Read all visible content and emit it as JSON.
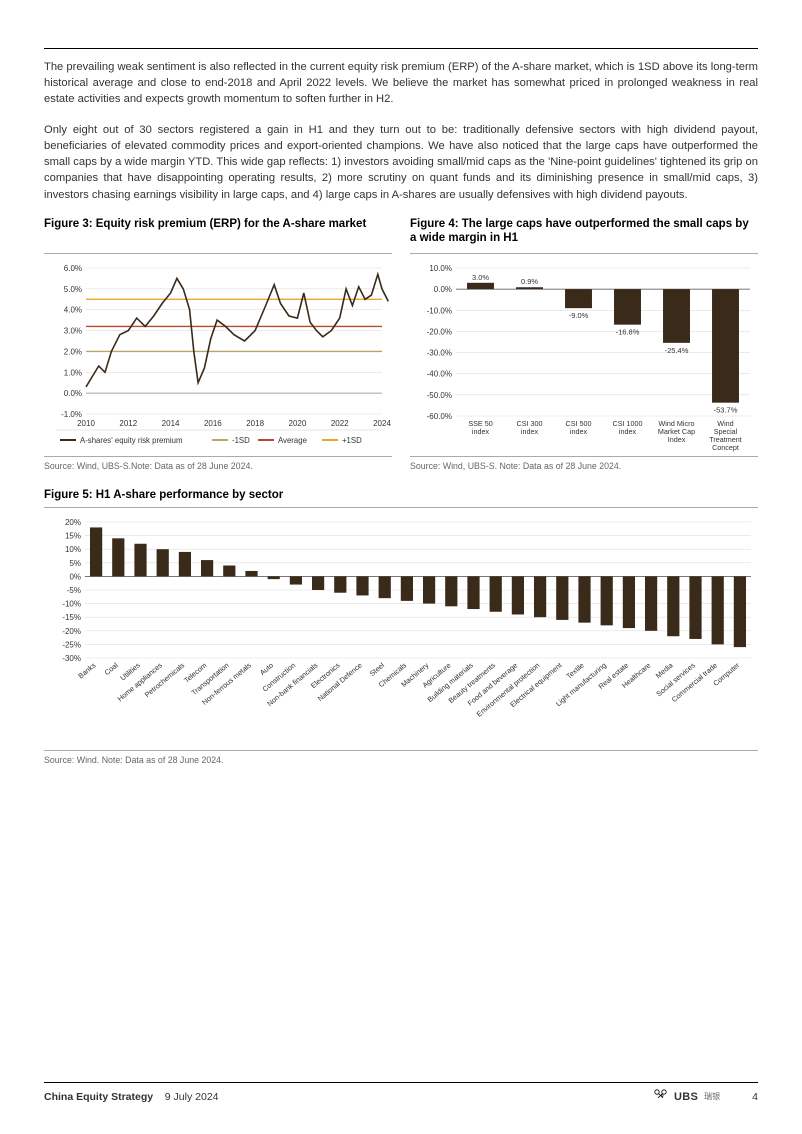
{
  "paragraphs": {
    "p1": "The prevailing weak sentiment is also reflected in the current equity risk premium (ERP) of the A-share market, which is 1SD above its long-term historical average and close to end-2018 and April 2022 levels. We believe the market has somewhat priced in prolonged weakness in real estate activities and expects growth momentum to soften further in H2.",
    "p2": "Only eight out of 30 sectors registered a gain in H1 and they turn out to be: traditionally defensive sectors with high dividend payout, beneficiaries of elevated commodity prices and export-oriented champions. We have also noticed that the large caps have outperformed the small caps by a wide margin YTD. This wide gap reflects: 1) investors avoiding small/mid caps as the 'Nine-point guidelines' tightened its grip on companies that have disappointing operating results, 2) more scrutiny on quant funds and its diminishing presence in small/mid caps, 3) investors chasing earnings visibility in large caps, and 4) large caps in A-shares are usually defensives with high dividend payouts."
  },
  "figure3": {
    "title": "Figure 3: Equity risk premium (ERP) for the A-share market",
    "type": "line",
    "ylim": [
      -1.0,
      6.0
    ],
    "ytick_step": 1.0,
    "ylabels": [
      "-1.0%",
      "0.0%",
      "1.0%",
      "2.0%",
      "3.0%",
      "4.0%",
      "5.0%",
      "6.0%"
    ],
    "xlim": [
      2010,
      2024
    ],
    "xtick_step": 2,
    "xlabels": [
      "2010",
      "2012",
      "2014",
      "2016",
      "2018",
      "2020",
      "2022",
      "2024"
    ],
    "colors": {
      "line": "#3a2a1a",
      "minus1sd": "#b5a66a",
      "average": "#b74a2a",
      "plus1sd": "#e8a830",
      "grid": "#dddddd",
      "bg": "#ffffff"
    },
    "reference_lines": {
      "minus1sd": 2.0,
      "average": 3.2,
      "plus1sd": 4.5
    },
    "series_points": [
      [
        2010.0,
        0.3
      ],
      [
        2010.3,
        0.8
      ],
      [
        2010.6,
        1.3
      ],
      [
        2010.9,
        1.0
      ],
      [
        2011.2,
        2.0
      ],
      [
        2011.6,
        2.8
      ],
      [
        2012.0,
        3.0
      ],
      [
        2012.4,
        3.6
      ],
      [
        2012.8,
        3.2
      ],
      [
        2013.2,
        3.7
      ],
      [
        2013.6,
        4.3
      ],
      [
        2014.0,
        4.8
      ],
      [
        2014.3,
        5.5
      ],
      [
        2014.6,
        5.0
      ],
      [
        2014.9,
        4.0
      ],
      [
        2015.1,
        2.0
      ],
      [
        2015.3,
        0.5
      ],
      [
        2015.6,
        1.2
      ],
      [
        2015.9,
        2.6
      ],
      [
        2016.2,
        3.5
      ],
      [
        2016.6,
        3.2
      ],
      [
        2017.0,
        2.8
      ],
      [
        2017.5,
        2.5
      ],
      [
        2018.0,
        3.0
      ],
      [
        2018.5,
        4.2
      ],
      [
        2018.9,
        5.2
      ],
      [
        2019.2,
        4.3
      ],
      [
        2019.6,
        3.7
      ],
      [
        2020.0,
        3.6
      ],
      [
        2020.3,
        4.8
      ],
      [
        2020.6,
        3.4
      ],
      [
        2020.9,
        3.0
      ],
      [
        2021.2,
        2.7
      ],
      [
        2021.6,
        3.0
      ],
      [
        2022.0,
        3.6
      ],
      [
        2022.3,
        5.0
      ],
      [
        2022.6,
        4.2
      ],
      [
        2022.9,
        5.1
      ],
      [
        2023.2,
        4.5
      ],
      [
        2023.5,
        4.7
      ],
      [
        2023.8,
        5.7
      ],
      [
        2024.0,
        5.0
      ],
      [
        2024.3,
        4.4
      ]
    ],
    "legend": [
      "A-shares' equity risk premium",
      "-1SD",
      "Average",
      "+1SD"
    ],
    "source": "Source: Wind, UBS-S.Note: Data as of 28 June 2024."
  },
  "figure4": {
    "title": "Figure 4: The large caps have outperformed the small caps by a wide margin in H1",
    "type": "bar",
    "ylim": [
      -60.0,
      10.0
    ],
    "ytick_step": 10.0,
    "ylabels": [
      "-60.0%",
      "-50.0%",
      "-40.0%",
      "-30.0%",
      "-20.0%",
      "-10.0%",
      "0.0%",
      "10.0%"
    ],
    "categories": [
      "SSE 50 index",
      "CSI 300 index",
      "CSI 500 index",
      "CSI 1000 index",
      "Wind Micro Market Cap Index",
      "Wind Special Treatment Concept index"
    ],
    "values": [
      3.0,
      0.9,
      -9.0,
      -16.8,
      -25.4,
      -53.7
    ],
    "value_labels": [
      "3.0%",
      "0.9%",
      "-9.0%",
      "-16.8%",
      "-25.4%",
      "-53.7%"
    ],
    "bar_color": "#3a2a1a",
    "grid_color": "#dddddd",
    "bg": "#ffffff",
    "source": "Source: Wind, UBS-S. Note: Data as of 28 June 2024."
  },
  "figure5": {
    "title": "Figure 5: H1 A-share performance by sector",
    "type": "bar",
    "ylim": [
      -30,
      20
    ],
    "ytick_step": 5,
    "ylabels": [
      "-30%",
      "-25%",
      "-20%",
      "-15%",
      "-10%",
      "-5%",
      "0%",
      "5%",
      "10%",
      "15%",
      "20%"
    ],
    "categories": [
      "Banks",
      "Coal",
      "Utilities",
      "Home appliances",
      "Petrochemicals",
      "Telecom",
      "Transportation",
      "Non-ferrous metals",
      "Auto",
      "Construction",
      "Non-bank financials",
      "Electronics",
      "National Defence",
      "Steel",
      "Chemicals",
      "Machinery",
      "Agriculture",
      "Building materials",
      "Beauty treatments",
      "Food and beverage",
      "Environmental protection",
      "Electrical equipment",
      "Textile",
      "Light manufacturing",
      "Real estate",
      "Healthcare",
      "Media",
      "Social services",
      "Commercial trade",
      "Computer"
    ],
    "values": [
      18,
      14,
      12,
      10,
      9,
      6,
      4,
      2,
      -1,
      -3,
      -5,
      -6,
      -7,
      -8,
      -9,
      -10,
      -11,
      -12,
      -13,
      -14,
      -15,
      -16,
      -17,
      -18,
      -19,
      -20,
      -22,
      -23,
      -25,
      -26
    ],
    "bar_color": "#3a2a1a",
    "grid_color": "#dddddd",
    "bg": "#ffffff",
    "source": "Source: Wind. Note: Data as of 28 June 2024."
  },
  "footer": {
    "doc_title": "China Equity Strategy",
    "date": "9 July 2024",
    "brand": "UBS",
    "page_number": "4"
  }
}
